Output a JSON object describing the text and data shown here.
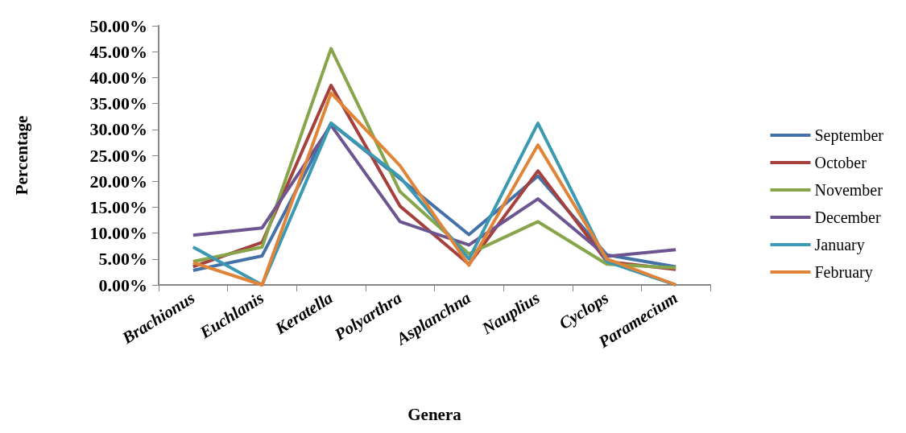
{
  "chart_data": {
    "type": "line",
    "xlabel": "Genera",
    "ylabel": "Percentage",
    "categories": [
      "Brachionus",
      "Euchlanis",
      "Keratella",
      "Polyarthra",
      "Asplanchna",
      "Nauplius",
      "Cyclops",
      "Paramecium"
    ],
    "series": [
      {
        "name": "September",
        "color": "#4472a8",
        "values": [
          2.8,
          5.6,
          31.2,
          20.5,
          9.7,
          21.0,
          5.8,
          3.5
        ]
      },
      {
        "name": "October",
        "color": "#a5403d",
        "values": [
          3.5,
          8.2,
          38.5,
          15.2,
          4.0,
          22.0,
          4.5,
          3.0
        ]
      },
      {
        "name": "November",
        "color": "#87a64b",
        "values": [
          4.5,
          7.3,
          45.6,
          18.0,
          6.0,
          12.2,
          4.0,
          3.3
        ]
      },
      {
        "name": "December",
        "color": "#6d5590",
        "values": [
          9.6,
          11.0,
          30.8,
          12.2,
          7.7,
          16.6,
          5.5,
          6.8
        ]
      },
      {
        "name": "January",
        "color": "#3b9ab1",
        "values": [
          7.3,
          0,
          31.2,
          20.8,
          5.0,
          31.2,
          4.5,
          0
        ]
      },
      {
        "name": "February",
        "color": "#e0843a",
        "values": [
          4.3,
          0,
          37.0,
          23.0,
          3.8,
          27.0,
          5.0,
          0
        ]
      }
    ],
    "ylim": [
      0,
      50
    ],
    "yticks": [
      {
        "value": 0,
        "label": "0.00%"
      },
      {
        "value": 5,
        "label": "5.00%"
      },
      {
        "value": 10,
        "label": "10.00%"
      },
      {
        "value": 15,
        "label": "15.00%"
      },
      {
        "value": 20,
        "label": "20.00%"
      },
      {
        "value": 25,
        "label": "25.00%"
      },
      {
        "value": 30,
        "label": "30.00%"
      },
      {
        "value": 35,
        "label": "35.00%"
      },
      {
        "value": 40,
        "label": "40.00%"
      },
      {
        "value": 45,
        "label": "45.00%"
      },
      {
        "value": 50,
        "label": "50.00%"
      }
    ],
    "grid": false,
    "legend": "right",
    "marker": "none",
    "line_style": "solid"
  }
}
